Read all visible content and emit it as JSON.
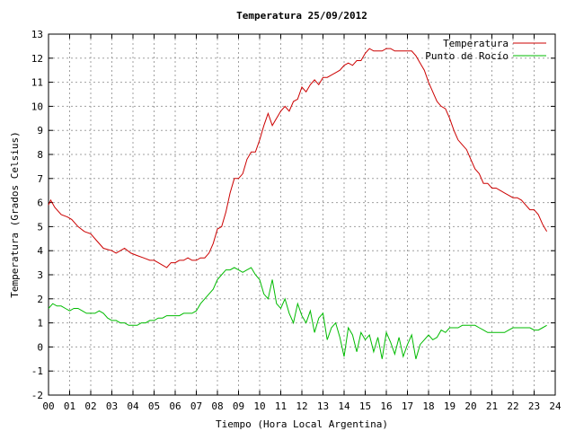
{
  "chart_data": {
    "type": "line",
    "title": "Temperatura 25/09/2012",
    "xlabel": "Tiempo (Hora Local Argentina)",
    "ylabel": "Temperatura (Grados Celsius)",
    "xlim": [
      0,
      24
    ],
    "ylim": [
      -2,
      13
    ],
    "x_ticks": [
      "00",
      "01",
      "02",
      "03",
      "04",
      "05",
      "06",
      "07",
      "08",
      "09",
      "10",
      "11",
      "12",
      "13",
      "14",
      "15",
      "16",
      "17",
      "18",
      "19",
      "20",
      "21",
      "22",
      "23",
      "24"
    ],
    "y_ticks": [
      "-2",
      "-1",
      "0",
      "1",
      "2",
      "3",
      "4",
      "5",
      "6",
      "7",
      "8",
      "9",
      "10",
      "11",
      "12",
      "13"
    ],
    "grid": true,
    "legend_position": "top-right",
    "series": [
      {
        "name": "Temperatura",
        "color": "#cc0000",
        "x": [
          0.0,
          0.1,
          0.3,
          0.6,
          0.9,
          1.1,
          1.4,
          1.7,
          2.0,
          2.3,
          2.6,
          3.0,
          3.2,
          3.4,
          3.6,
          3.9,
          4.2,
          4.5,
          4.8,
          5.0,
          5.2,
          5.4,
          5.6,
          5.8,
          6.0,
          6.2,
          6.4,
          6.6,
          6.8,
          7.0,
          7.2,
          7.4,
          7.6,
          7.8,
          8.0,
          8.2,
          8.4,
          8.6,
          8.8,
          9.0,
          9.2,
          9.4,
          9.6,
          9.8,
          10.0,
          10.2,
          10.4,
          10.6,
          10.8,
          11.0,
          11.2,
          11.4,
          11.6,
          11.8,
          12.0,
          12.2,
          12.4,
          12.6,
          12.8,
          13.0,
          13.2,
          13.4,
          13.6,
          13.8,
          14.0,
          14.2,
          14.4,
          14.6,
          14.8,
          15.0,
          15.2,
          15.4,
          15.6,
          15.8,
          16.0,
          16.2,
          16.4,
          16.6,
          16.8,
          17.0,
          17.2,
          17.4,
          17.6,
          17.8,
          18.0,
          18.2,
          18.4,
          18.6,
          18.8,
          19.0,
          19.2,
          19.4,
          19.6,
          19.8,
          20.0,
          20.2,
          20.4,
          20.6,
          20.8,
          21.0,
          21.2,
          21.4,
          21.6,
          21.8,
          22.0,
          22.2,
          22.4,
          22.6,
          22.8,
          23.0,
          23.2,
          23.4,
          23.6
        ],
        "values": [
          5.9,
          6.1,
          5.8,
          5.5,
          5.4,
          5.3,
          5.0,
          4.8,
          4.7,
          4.4,
          4.1,
          4.0,
          3.9,
          4.0,
          4.1,
          3.9,
          3.8,
          3.7,
          3.6,
          3.6,
          3.5,
          3.4,
          3.3,
          3.5,
          3.5,
          3.6,
          3.6,
          3.7,
          3.6,
          3.6,
          3.7,
          3.7,
          3.9,
          4.3,
          4.9,
          5.0,
          5.6,
          6.4,
          7.0,
          7.0,
          7.2,
          7.8,
          8.1,
          8.1,
          8.6,
          9.2,
          9.7,
          9.2,
          9.5,
          9.8,
          10.0,
          9.8,
          10.2,
          10.3,
          10.8,
          10.6,
          10.9,
          11.1,
          10.9,
          11.2,
          11.2,
          11.3,
          11.4,
          11.5,
          11.7,
          11.8,
          11.7,
          11.9,
          11.9,
          12.2,
          12.4,
          12.3,
          12.3,
          12.3,
          12.4,
          12.4,
          12.3,
          12.3,
          12.3,
          12.3,
          12.3,
          12.1,
          11.8,
          11.5,
          11.0,
          10.6,
          10.2,
          10.0,
          9.9,
          9.5,
          9.0,
          8.6,
          8.4,
          8.2,
          7.8,
          7.4,
          7.2,
          6.8,
          6.8,
          6.6,
          6.6,
          6.5,
          6.4,
          6.3,
          6.2,
          6.2,
          6.1,
          5.9,
          5.7,
          5.7,
          5.5,
          5.1,
          4.8
        ]
      },
      {
        "name": "Punto de Rocío",
        "color": "#00bb00",
        "x": [
          0.0,
          0.2,
          0.4,
          0.6,
          0.8,
          1.0,
          1.2,
          1.4,
          1.6,
          1.8,
          2.0,
          2.2,
          2.4,
          2.6,
          2.8,
          3.0,
          3.2,
          3.4,
          3.6,
          3.8,
          4.0,
          4.2,
          4.4,
          4.6,
          4.8,
          5.0,
          5.2,
          5.4,
          5.6,
          5.8,
          6.0,
          6.2,
          6.4,
          6.6,
          6.8,
          7.0,
          7.2,
          7.4,
          7.6,
          7.8,
          8.0,
          8.2,
          8.4,
          8.6,
          8.8,
          9.0,
          9.2,
          9.4,
          9.6,
          9.8,
          10.0,
          10.2,
          10.4,
          10.6,
          10.8,
          11.0,
          11.2,
          11.4,
          11.6,
          11.8,
          12.0,
          12.2,
          12.4,
          12.6,
          12.8,
          13.0,
          13.2,
          13.4,
          13.6,
          13.8,
          14.0,
          14.2,
          14.4,
          14.6,
          14.8,
          15.0,
          15.2,
          15.4,
          15.6,
          15.8,
          16.0,
          16.2,
          16.4,
          16.6,
          16.8,
          17.0,
          17.2,
          17.4,
          17.6,
          17.8,
          18.0,
          18.2,
          18.4,
          18.6,
          18.8,
          19.0,
          19.2,
          19.4,
          19.6,
          19.8,
          20.0,
          20.2,
          20.4,
          20.6,
          20.8,
          21.0,
          21.2,
          21.4,
          21.6,
          21.8,
          22.0,
          22.2,
          22.4,
          22.6,
          22.8,
          23.0,
          23.2,
          23.4,
          23.6
        ],
        "values": [
          1.6,
          1.8,
          1.7,
          1.7,
          1.6,
          1.5,
          1.6,
          1.6,
          1.5,
          1.4,
          1.4,
          1.4,
          1.5,
          1.4,
          1.2,
          1.1,
          1.1,
          1.0,
          1.0,
          0.9,
          0.9,
          0.9,
          1.0,
          1.0,
          1.1,
          1.1,
          1.2,
          1.2,
          1.3,
          1.3,
          1.3,
          1.3,
          1.4,
          1.4,
          1.4,
          1.5,
          1.8,
          2.0,
          2.2,
          2.4,
          2.8,
          3.0,
          3.2,
          3.2,
          3.3,
          3.2,
          3.1,
          3.2,
          3.3,
          3.0,
          2.8,
          2.2,
          2.0,
          2.8,
          1.8,
          1.6,
          2.0,
          1.4,
          1.0,
          1.8,
          1.3,
          1.0,
          1.5,
          0.6,
          1.2,
          1.4,
          0.3,
          0.8,
          1.0,
          0.4,
          -0.4,
          0.8,
          0.5,
          -0.2,
          0.6,
          0.3,
          0.5,
          -0.2,
          0.4,
          -0.5,
          0.6,
          0.2,
          -0.3,
          0.4,
          -0.4,
          0.1,
          0.5,
          -0.5,
          0.1,
          0.3,
          0.5,
          0.3,
          0.4,
          0.7,
          0.6,
          0.8,
          0.8,
          0.8,
          0.9,
          0.9,
          0.9,
          0.9,
          0.8,
          0.7,
          0.6,
          0.6,
          0.6,
          0.6,
          0.6,
          0.7,
          0.8,
          0.8,
          0.8,
          0.8,
          0.8,
          0.7,
          0.7,
          0.8,
          0.9
        ]
      }
    ]
  }
}
